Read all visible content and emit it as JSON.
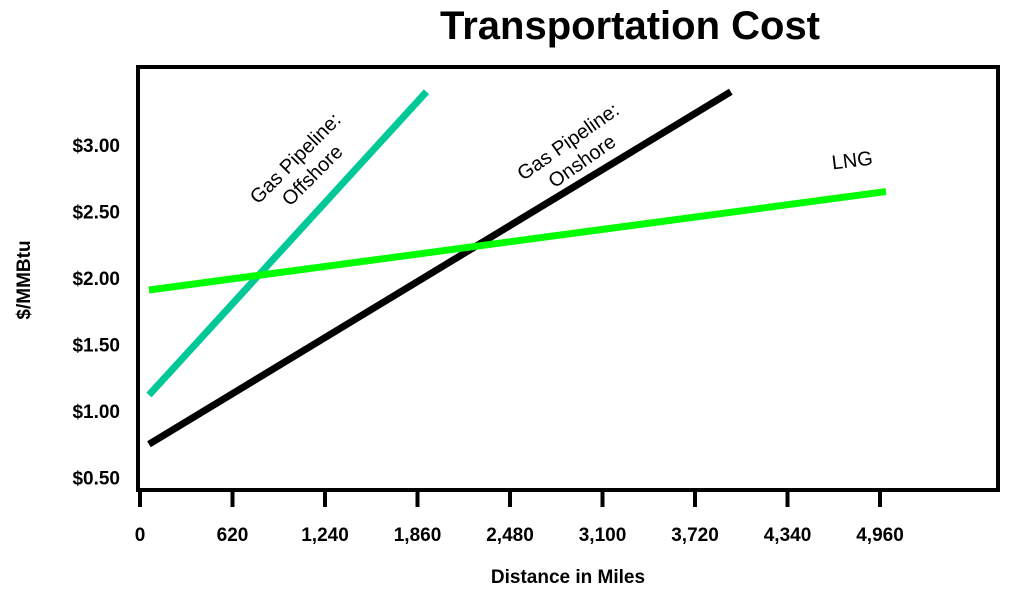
{
  "chart_data": {
    "type": "line",
    "title": "Transportation Cost",
    "xlabel": "Distance in Miles",
    "ylabel": "$/MMBtu",
    "xlim": [
      0,
      5000
    ],
    "ylim": [
      0.1,
      3.4
    ],
    "x_ticks": [
      0,
      620,
      1240,
      1860,
      2480,
      3100,
      3720,
      4340,
      4960
    ],
    "x_tick_labels": [
      "0",
      "620",
      "1,240",
      "1,860",
      "2,480",
      "3,100",
      "3,720",
      "4,340",
      "4,960"
    ],
    "y_ticks": [
      0.5,
      1.0,
      1.5,
      2.0,
      2.5,
      3.0
    ],
    "y_tick_labels": [
      "$0.50",
      "$1.00",
      "$1.50",
      "$2.00",
      "$2.50",
      "$3.00"
    ],
    "grid": false,
    "series": [
      {
        "name": "Gas Pipeline: Offshore",
        "color": "#00c896",
        "x": [
          60,
          1920
        ],
        "y": [
          1.12,
          3.4
        ]
      },
      {
        "name": "Gas Pipeline: Onshore",
        "color": "#000000",
        "x": [
          60,
          3960
        ],
        "y": [
          0.75,
          3.4
        ]
      },
      {
        "name": "LNG",
        "color": "#00ff00",
        "x": [
          60,
          5000
        ],
        "y": [
          1.91,
          2.65
        ]
      }
    ],
    "annotations": [
      {
        "lines": [
          "Gas Pipeline:",
          "Offshore"
        ]
      },
      {
        "lines": [
          "Gas Pipeline:",
          "Onshore"
        ]
      },
      {
        "lines": [
          "LNG"
        ]
      }
    ]
  }
}
